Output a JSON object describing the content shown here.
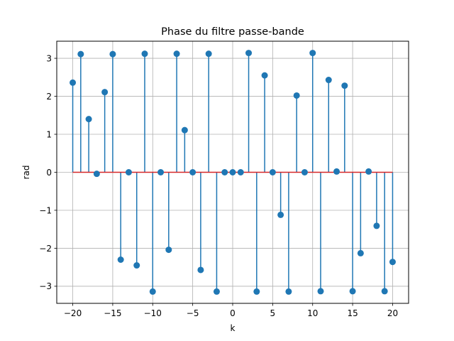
{
  "chart_data": {
    "type": "stem",
    "title": "Phase du filtre passe-bande",
    "xlabel": "k",
    "ylabel": "rad",
    "xlim": [
      -22.0,
      22.0
    ],
    "ylim": [
      -3.45,
      3.45
    ],
    "x_ticks": [
      -20,
      -15,
      -10,
      -5,
      0,
      5,
      10,
      15,
      20
    ],
    "x_tick_labels": [
      "−20",
      "−15",
      "−10",
      "−5",
      "0",
      "5",
      "10",
      "15",
      "20"
    ],
    "y_ticks": [
      -3,
      -2,
      -1,
      0,
      1,
      2,
      3
    ],
    "y_tick_labels": [
      "−3",
      "−2",
      "−1",
      "0",
      "1",
      "2",
      "3"
    ],
    "grid": true,
    "colors": {
      "stem": "#1f77b4",
      "baseline": "#d62728",
      "grid": "#b0b0b0"
    },
    "x": [
      -20,
      -19,
      -18,
      -17,
      -16,
      -15,
      -14,
      -13,
      -12,
      -11,
      -10,
      -9,
      -8,
      -7,
      -6,
      -5,
      -4,
      -3,
      -2,
      -1,
      0,
      1,
      2,
      3,
      4,
      5,
      6,
      7,
      8,
      9,
      10,
      11,
      12,
      13,
      14,
      15,
      16,
      17,
      18,
      19,
      20
    ],
    "values": [
      2.36,
      3.11,
      1.4,
      -0.04,
      2.11,
      3.11,
      -2.3,
      0.0,
      -2.45,
      3.12,
      -3.14,
      0.0,
      -2.04,
      3.12,
      1.11,
      0.0,
      -2.57,
      3.12,
      -3.14,
      0.0,
      0.0,
      0.0,
      3.14,
      -3.14,
      2.55,
      0.0,
      -1.12,
      -3.14,
      2.02,
      0.0,
      3.14,
      -3.13,
      2.43,
      0.02,
      2.28,
      -3.13,
      -2.13,
      0.02,
      -1.41,
      -3.13,
      -2.36
    ]
  }
}
